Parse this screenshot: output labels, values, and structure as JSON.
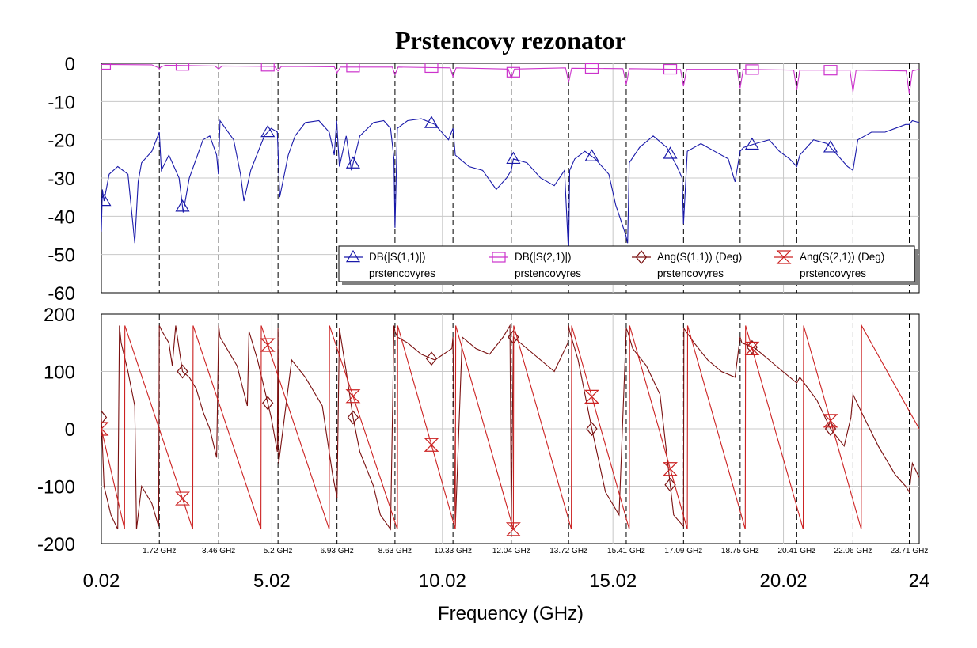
{
  "chart_data": {
    "type": "line",
    "title": "Prstencovy rezonator",
    "xlabel": "Frequency (GHz)",
    "xlim": [
      0.02,
      24
    ],
    "x_major_ticks": [
      "0.02",
      "5.02",
      "10.02",
      "15.02",
      "20.02",
      "24"
    ],
    "x_major_tick_values": [
      0.02,
      5.02,
      10.02,
      15.02,
      20.02,
      24
    ],
    "x_marker_ticks": [
      "1.72 GHz",
      "3.46 GHz",
      "5.2 GHz",
      "6.93 GHz",
      "8.63 GHz",
      "10.33 GHz",
      "12.04 GHz",
      "13.72 GHz",
      "15.41 GHz",
      "17.09 GHz",
      "18.75 GHz",
      "20.41 GHz",
      "22.06 GHz",
      "23.71 GHz"
    ],
    "x_marker_tick_values": [
      1.72,
      3.46,
      5.2,
      6.93,
      8.63,
      10.33,
      12.04,
      13.72,
      15.41,
      17.09,
      18.75,
      20.41,
      22.06,
      23.71
    ],
    "grid": true,
    "legend_placement": "bottom-right of upper panel",
    "plots": [
      {
        "name": "magnitude",
        "ylim": [
          -60,
          0
        ],
        "yticks": [
          "0",
          "-10",
          "-20",
          "-30",
          "-40",
          "-50",
          "-60"
        ],
        "ytick_values": [
          0,
          -10,
          -20,
          -30,
          -40,
          -50,
          -60
        ],
        "series": [
          {
            "name": "DB(|S(1,1)|)",
            "subname": "prstencovyres",
            "color": "#1a1aaa",
            "marker": "triangle-up",
            "marker_x": [
              0.1,
              2.4,
              4.9,
              7.4,
              9.7,
              12.1,
              14.4,
              16.7,
              19.1,
              21.4
            ],
            "x": [
              0.02,
              0.05,
              0.1,
              0.25,
              0.5,
              0.8,
              1.0,
              1.1,
              1.2,
              1.5,
              1.72,
              1.78,
              2.0,
              2.3,
              2.42,
              2.6,
              3.0,
              3.2,
              3.4,
              3.45,
              3.5,
              3.9,
              4.1,
              4.2,
              4.4,
              4.8,
              5.0,
              5.18,
              5.25,
              5.5,
              5.7,
              6.0,
              6.4,
              6.7,
              6.85,
              6.92,
              7.0,
              7.2,
              7.35,
              7.6,
              8.0,
              8.3,
              8.5,
              8.6,
              8.63,
              8.7,
              9.0,
              9.4,
              9.8,
              10.2,
              10.33,
              10.4,
              10.8,
              11.2,
              11.6,
              11.9,
              12.04,
              12.1,
              12.5,
              12.9,
              13.3,
              13.6,
              13.72,
              13.75,
              13.9,
              14.2,
              14.5,
              14.9,
              15.1,
              15.4,
              15.45,
              15.5,
              15.8,
              16.2,
              16.6,
              16.9,
              17.05,
              17.09,
              17.2,
              17.6,
              18.0,
              18.4,
              18.6,
              18.75,
              18.85,
              19.2,
              19.6,
              19.9,
              20.2,
              20.41,
              20.5,
              20.9,
              21.3,
              21.7,
              21.9,
              22.06,
              22.2,
              22.6,
              23.0,
              23.3,
              23.6,
              23.71,
              23.8,
              24.0
            ],
            "y": [
              -44,
              -33,
              -36,
              -29,
              -27,
              -29,
              -47,
              -31,
              -26,
              -23,
              -18,
              -28,
              -24,
              -30,
              -39,
              -30,
              -20,
              -19,
              -24,
              -29,
              -15,
              -20,
              -29,
              -36,
              -28,
              -19,
              -17,
              -18,
              -35,
              -24,
              -19,
              -15.5,
              -15,
              -18,
              -24,
              -15,
              -27,
              -19,
              -28,
              -19,
              -15.5,
              -15,
              -17,
              -25,
              -43,
              -17,
              -15,
              -14.5,
              -16,
              -20,
              -17,
              -24,
              -27,
              -28,
              -33,
              -30,
              -28,
              -25,
              -26,
              -30,
              -32,
              -28,
              -50,
              -28,
              -25,
              -23,
              -25,
              -29,
              -37,
              -45,
              -47,
              -26,
              -22,
              -19,
              -22,
              -27,
              -30,
              -42,
              -23,
              -21,
              -23,
              -25,
              -31,
              -23,
              -22,
              -21,
              -20,
              -23,
              -25,
              -27,
              -24,
              -20,
              -21,
              -25,
              -27,
              -28,
              -20,
              -18,
              -18,
              -17,
              -16,
              -16,
              -15,
              -15.5
            ]
          },
          {
            "name": "DB(|S(2,1)|)",
            "subname": "prstencovyres",
            "color": "#cc33cc",
            "marker": "square",
            "marker_x": [
              0.1,
              2.4,
              4.9,
              7.4,
              9.7,
              12.1,
              14.4,
              16.7,
              19.1,
              21.4
            ],
            "x": [
              0.02,
              1.5,
              1.7,
              1.72,
              1.76,
              1.9,
              3.35,
              3.46,
              3.56,
              5.1,
              5.2,
              5.3,
              6.85,
              6.93,
              7.03,
              8.55,
              8.63,
              8.72,
              10.25,
              10.33,
              10.42,
              11.95,
              12.04,
              12.13,
              13.63,
              13.72,
              13.81,
              15.31,
              15.41,
              15.5,
              17.0,
              17.09,
              17.18,
              18.66,
              18.75,
              18.84,
              20.32,
              20.41,
              20.5,
              21.97,
              22.06,
              22.15,
              23.62,
              23.71,
              23.8,
              24.0
            ],
            "y": [
              -0.3,
              -0.4,
              -1.2,
              -1.5,
              -1.0,
              -0.5,
              -0.7,
              -1.5,
              -0.7,
              -0.8,
              -2.0,
              -0.8,
              -0.9,
              -2.5,
              -1.0,
              -1.0,
              -3.0,
              -1.0,
              -1.2,
              -3.5,
              -1.2,
              -1.5,
              -4.0,
              -1.5,
              -1.2,
              -5.0,
              -1.3,
              -1.4,
              -5.5,
              -1.4,
              -1.6,
              -6.0,
              -1.6,
              -1.6,
              -6.5,
              -1.6,
              -1.8,
              -7.0,
              -1.8,
              -1.8,
              -7.5,
              -1.8,
              -2.0,
              -8.0,
              -2.0,
              -1.6
            ]
          }
        ]
      },
      {
        "name": "phase",
        "ylim": [
          -200,
          200
        ],
        "yticks": [
          "200",
          "100",
          "0",
          "-100",
          "-200"
        ],
        "ytick_values": [
          200,
          100,
          0,
          -100,
          -200
        ],
        "series": [
          {
            "name": "Ang(S(1,1)) (Deg)",
            "subname": "prstencovyres",
            "color": "#7a1010",
            "marker": "diamond",
            "marker_x": [
              0.02,
              2.4,
              4.9,
              7.4,
              9.7,
              12.1,
              14.4,
              16.7,
              19.1,
              21.4
            ],
            "x": [
              0.02,
              0.1,
              0.3,
              0.5,
              0.55,
              0.6,
              0.8,
              1.0,
              1.05,
              1.2,
              1.5,
              1.7,
              1.72,
              1.8,
              2.0,
              2.1,
              2.2,
              2.4,
              2.6,
              2.8,
              3.0,
              3.2,
              3.4,
              3.46,
              3.5,
              4.0,
              4.3,
              4.35,
              4.6,
              5.0,
              5.18,
              5.2,
              5.22,
              5.6,
              6.0,
              6.5,
              6.8,
              6.93,
              7.0,
              7.2,
              7.4,
              7.6,
              8.0,
              8.2,
              8.5,
              8.6,
              8.63,
              8.7,
              9.0,
              9.4,
              9.8,
              10.3,
              10.33,
              10.4,
              10.6,
              11.0,
              11.4,
              11.8,
              12.0,
              12.04,
              12.1,
              12.5,
              12.9,
              13.3,
              13.7,
              13.72,
              13.75,
              14.0,
              14.4,
              14.8,
              15.2,
              15.41,
              15.45,
              15.6,
              16.0,
              16.4,
              16.8,
              17.09,
              17.1,
              17.4,
              17.8,
              18.2,
              18.6,
              18.75,
              18.8,
              19.2,
              19.6,
              20.0,
              20.41,
              20.5,
              21.0,
              21.4,
              21.8,
              22.0,
              22.06,
              22.3,
              22.8,
              23.3,
              23.6,
              23.71,
              23.8,
              24.0
            ],
            "y": [
              20,
              -100,
              -150,
              -175,
              180,
              150,
              100,
              40,
              -175,
              -100,
              -130,
              -170,
              180,
              170,
              150,
              110,
              180,
              100,
              90,
              70,
              30,
              0,
              -50,
              180,
              160,
              110,
              40,
              170,
              120,
              20,
              -40,
              175,
              -60,
              120,
              90,
              40,
              -80,
              -120,
              175,
              100,
              20,
              -40,
              -100,
              -150,
              -175,
              180,
              170,
              160,
              150,
              130,
              120,
              140,
              160,
              -170,
              160,
              140,
              130,
              160,
              180,
              -175,
              160,
              140,
              120,
              100,
              150,
              180,
              170,
              120,
              0,
              -110,
              -150,
              175,
              170,
              140,
              110,
              60,
              -150,
              -170,
              175,
              150,
              120,
              100,
              90,
              160,
              150,
              140,
              120,
              100,
              80,
              90,
              50,
              0,
              -30,
              20,
              60,
              30,
              -30,
              -80,
              -100,
              -110,
              -60,
              -85
            ]
          },
          {
            "name": "Ang(S(2,1)) (Deg)",
            "subname": "prstencovyres",
            "color": "#cc2222",
            "marker": "hourglass",
            "marker_x": [
              0.02,
              2.4,
              4.9,
              7.4,
              9.7,
              12.1,
              14.4,
              16.7,
              19.1,
              21.4
            ],
            "x": [
              0.02,
              0.7,
              0.71,
              2.7,
              2.71,
              4.7,
              4.71,
              6.7,
              6.71,
              8.7,
              8.71,
              10.4,
              10.41,
              12.1,
              12.11,
              13.8,
              13.81,
              15.5,
              15.51,
              17.2,
              17.21,
              18.9,
              18.91,
              20.6,
              20.61,
              22.3,
              22.31,
              24.0
            ],
            "y": [
              0,
              -175,
              180,
              -175,
              180,
              -175,
              180,
              -175,
              180,
              -175,
              180,
              -175,
              180,
              -175,
              180,
              -175,
              180,
              -175,
              180,
              -175,
              180,
              -175,
              180,
              -175,
              180,
              -175,
              180,
              0
            ]
          }
        ]
      }
    ],
    "legend": [
      {
        "name": "DB(|S(1,1)|)",
        "sub": "prstencovyres"
      },
      {
        "name": "DB(|S(2,1)|)",
        "sub": "prstencovyres"
      },
      {
        "name": "Ang(S(1,1)) (Deg)",
        "sub": "prstencovyres"
      },
      {
        "name": "Ang(S(2,1)) (Deg)",
        "sub": "prstencovyres"
      }
    ]
  }
}
